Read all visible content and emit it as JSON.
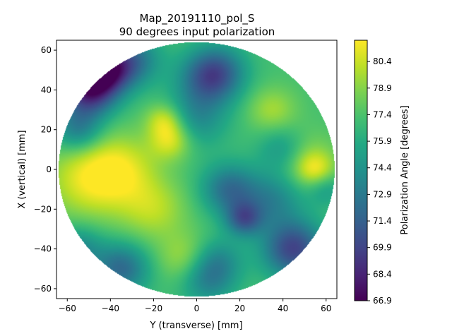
{
  "chart_data": {
    "type": "heatmap",
    "title_line1": "Map_20191110_pol_S",
    "title_line2": "90 degrees input polarization",
    "xlabel": "Y (transverse) [mm]",
    "ylabel": "X (vertical) [mm]",
    "xlim": [
      -65,
      65
    ],
    "ylim": [
      -65,
      65
    ],
    "x_ticks": [
      -60,
      -40,
      -20,
      0,
      20,
      40,
      60
    ],
    "x_tick_labels": [
      "−60",
      "−40",
      "−20",
      "0",
      "20",
      "40",
      "60"
    ],
    "y_ticks": [
      60,
      40,
      20,
      0,
      -20,
      -40,
      -60
    ],
    "y_tick_labels": [
      "60",
      "40",
      "20",
      "0",
      "−20",
      "−40",
      "−60"
    ],
    "aperture_radius_mm": 64,
    "colorbar": {
      "label": "Polarization Angle [degrees]",
      "range": [
        66.9,
        81.6
      ],
      "ticks": [
        66.9,
        68.4,
        69.9,
        71.4,
        72.9,
        74.4,
        75.9,
        77.4,
        78.9,
        80.4
      ],
      "tick_labels": [
        "66.9",
        "68.4",
        "69.9",
        "71.4",
        "72.9",
        "74.4",
        "75.9",
        "77.4",
        "78.9",
        "80.4"
      ],
      "colormap": "viridis"
    },
    "base_value": 77.2,
    "features": [
      {
        "y": -50,
        "x": -5,
        "value": 80.8,
        "spread": 14
      },
      {
        "y": -35,
        "x": 0,
        "value": 80.2,
        "spread": 12
      },
      {
        "y": -12,
        "x": 15,
        "value": 81.0,
        "spread": 7
      },
      {
        "y": -15,
        "x": 25,
        "value": 80.3,
        "spread": 6
      },
      {
        "y": -20,
        "x": -20,
        "value": 79.9,
        "spread": 11
      },
      {
        "y": 50,
        "x": 5,
        "value": 79.5,
        "spread": 10
      },
      {
        "y": 55,
        "x": 0,
        "value": 80.1,
        "spread": 6
      },
      {
        "y": 35,
        "x": 30,
        "value": 79.6,
        "spread": 8
      },
      {
        "y": -5,
        "x": -45,
        "value": 79.8,
        "spread": 9
      },
      {
        "y": -50,
        "x": 40,
        "value": 68.4,
        "spread": 9
      },
      {
        "y": -42,
        "x": 50,
        "value": 69.6,
        "spread": 8
      },
      {
        "y": -30,
        "x": 55,
        "value": 72.5,
        "spread": 9
      },
      {
        "y": -55,
        "x": 20,
        "value": 73.0,
        "spread": 8
      },
      {
        "y": 5,
        "x": 45,
        "value": 72.6,
        "spread": 10
      },
      {
        "y": 10,
        "x": 50,
        "value": 73.5,
        "spread": 9
      },
      {
        "y": 0,
        "x": 25,
        "value": 74.2,
        "spread": 10
      },
      {
        "y": 15,
        "x": -10,
        "value": 72.3,
        "spread": 9
      },
      {
        "y": 22,
        "x": -25,
        "value": 71.8,
        "spread": 6
      },
      {
        "y": 35,
        "x": -15,
        "value": 73.6,
        "spread": 10
      },
      {
        "y": 45,
        "x": -40,
        "value": 69.9,
        "spread": 10
      },
      {
        "y": 40,
        "x": 10,
        "value": 74.3,
        "spread": 8
      },
      {
        "y": -55,
        "x": -40,
        "value": 73.7,
        "spread": 8
      },
      {
        "y": -35,
        "x": -50,
        "value": 72.0,
        "spread": 9
      },
      {
        "y": 5,
        "x": -55,
        "value": 73.2,
        "spread": 9
      },
      {
        "y": 10,
        "x": -45,
        "value": 74.6,
        "spread": 8
      },
      {
        "y": 60,
        "x": -10,
        "value": 75.0,
        "spread": 6
      }
    ]
  }
}
